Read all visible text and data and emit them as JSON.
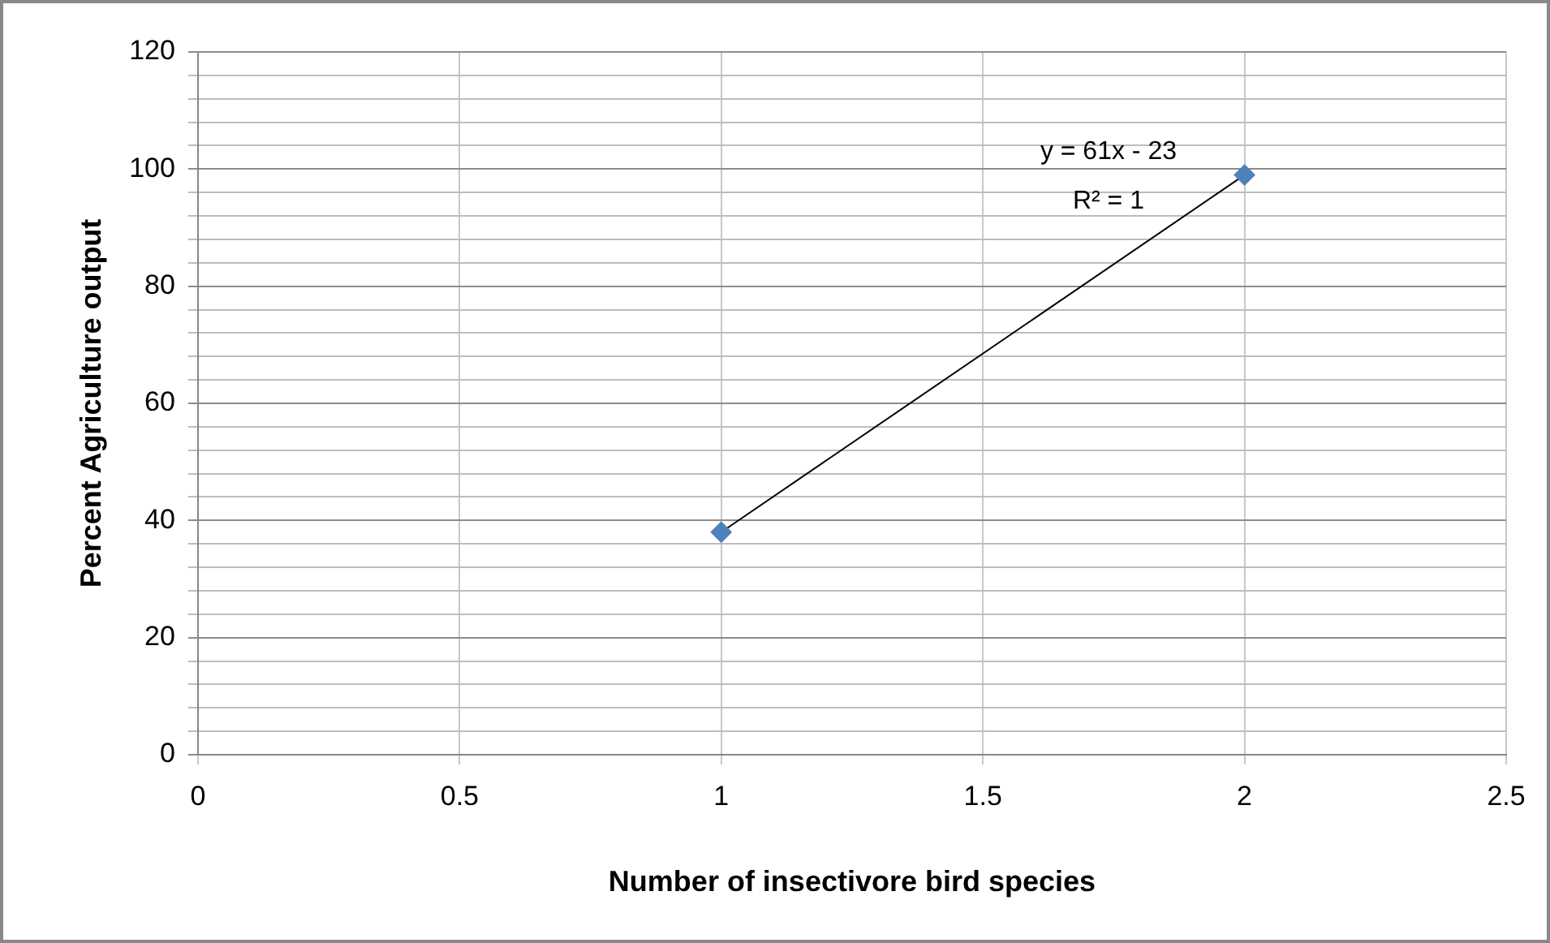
{
  "chart_data": {
    "type": "scatter",
    "xlabel": "Number of insectivore bird species",
    "ylabel": "Percent Agriculture output",
    "x": [
      1,
      2
    ],
    "series": [
      {
        "type": "scatter",
        "color": "#4f81bd",
        "values": [
          38,
          99
        ],
        "marker": "diamond"
      },
      {
        "type": "line",
        "color": "#000000",
        "values": [
          38,
          99
        ],
        "marker": "none"
      }
    ],
    "xlim": [
      0,
      2.5
    ],
    "xticks": [
      0,
      0.5,
      1,
      1.5,
      2,
      2.5
    ],
    "ylim": [
      0,
      120
    ],
    "yticks": [
      0,
      {
        "value": 4,
        "label": null
      },
      {
        "value": 8,
        "label": null
      },
      {
        "value": 12,
        "label": null
      },
      {
        "value": 16,
        "label": null
      },
      20,
      {
        "value": 24,
        "label": null
      },
      {
        "value": 28,
        "label": null
      },
      {
        "value": 32,
        "label": null
      },
      {
        "value": 36,
        "label": null
      },
      40,
      {
        "value": 44,
        "label": null
      },
      {
        "value": 48,
        "label": null
      },
      {
        "value": 52,
        "label": null
      },
      {
        "value": 56,
        "label": null
      },
      60,
      {
        "value": 64,
        "label": null
      },
      {
        "value": 68,
        "label": null
      },
      {
        "value": 72,
        "label": null
      },
      {
        "value": 76,
        "label": null
      },
      80,
      {
        "value": 84,
        "label": null
      },
      {
        "value": 88,
        "label": null
      },
      {
        "value": 92,
        "label": null
      },
      {
        "value": 96,
        "label": null
      },
      100,
      {
        "value": 104,
        "label": null
      },
      {
        "value": 108,
        "label": null
      },
      {
        "value": 112,
        "label": null
      },
      {
        "value": 116,
        "label": null
      },
      120
    ],
    "grid": true,
    "legend": false,
    "annotations": [
      "y = 61x - 23",
      "R² = 1"
    ]
  }
}
